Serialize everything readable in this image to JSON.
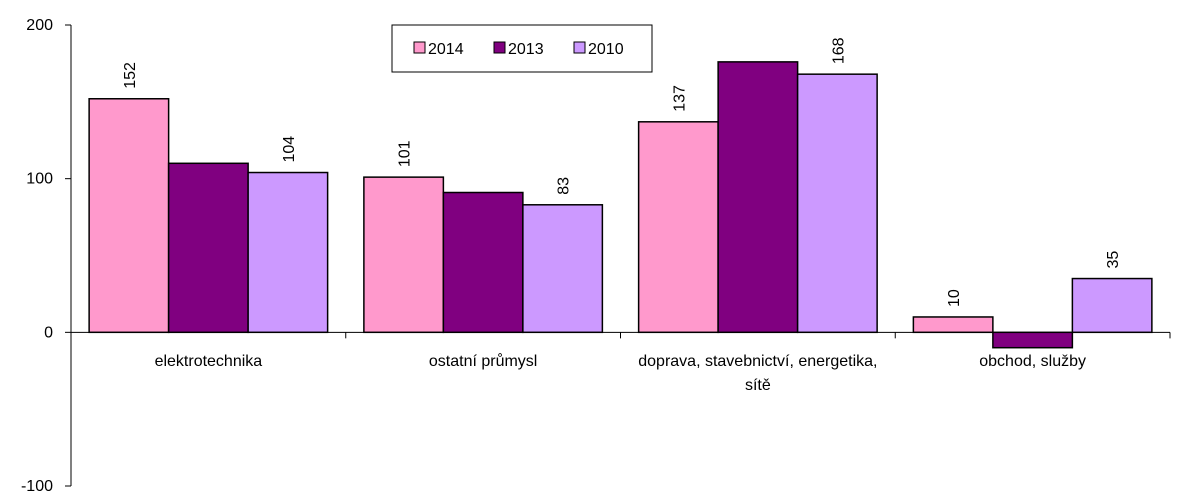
{
  "chart_data": {
    "type": "bar",
    "categories": [
      "elektrotechnika",
      "ostatní průmysl",
      "doprava, stavebnictví, energetika, sítě",
      "obchod, služby"
    ],
    "series": [
      {
        "name": "2014",
        "color": "#ff99cc",
        "values": [
          152,
          101,
          137,
          10
        ],
        "labels": true
      },
      {
        "name": "2013",
        "color": "#800080",
        "values": [
          110,
          91,
          176,
          -10
        ],
        "labels": false
      },
      {
        "name": "2010",
        "color": "#cc99ff",
        "values": [
          104,
          83,
          168,
          35
        ],
        "labels": true
      }
    ],
    "ylim": [
      -100,
      200
    ],
    "yticks": [
      -100,
      0,
      100,
      200
    ],
    "legend": "top"
  }
}
